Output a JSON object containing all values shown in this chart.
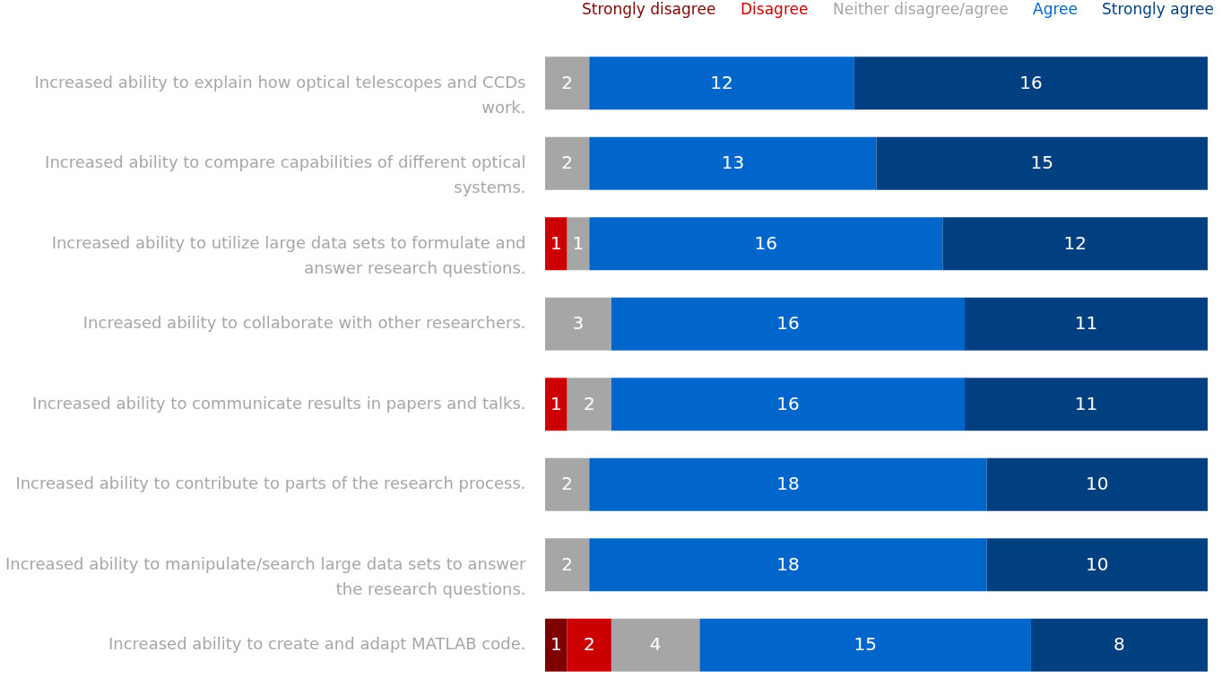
{
  "chart_data": {
    "type": "bar",
    "orientation": "horizontal",
    "stacked": true,
    "data_labels": true,
    "legend": "top right",
    "tick_labels": "y",
    "grid": false,
    "categories": [
      "Increased ability to explain how optical telescopes and CCDs work.",
      "Increased ability to compare capabilities of different optical systems.",
      "Increased ability to utilize large data sets to formulate and answer research questions.",
      "Increased ability to collaborate with other researchers.",
      "Increased ability to communicate results in papers and talks.",
      "Increased ability to contribute to parts of the research process.",
      "Increased ability to manipulate/search large data sets to answer the research questions.",
      "Increased ability to create and adapt MATLAB code."
    ],
    "series": [
      {
        "name": "Strongly disagree",
        "color": "#7f0000",
        "values": [
          null,
          null,
          null,
          null,
          null,
          null,
          null,
          1
        ]
      },
      {
        "name": "Disagree",
        "color": "#cc0000",
        "values": [
          null,
          null,
          1,
          null,
          1,
          null,
          null,
          2
        ]
      },
      {
        "name": "Neither disagree/agree",
        "color": "#a6a6a6",
        "values": [
          2,
          2,
          1,
          3,
          2,
          2,
          2,
          4
        ]
      },
      {
        "name": "Agree",
        "color": "#0066cc",
        "values": [
          12,
          13,
          16,
          16,
          16,
          18,
          18,
          15
        ]
      },
      {
        "name": "Strongly agree",
        "color": "#003f80",
        "values": [
          16,
          15,
          12,
          11,
          11,
          10,
          10,
          8
        ]
      }
    ]
  }
}
